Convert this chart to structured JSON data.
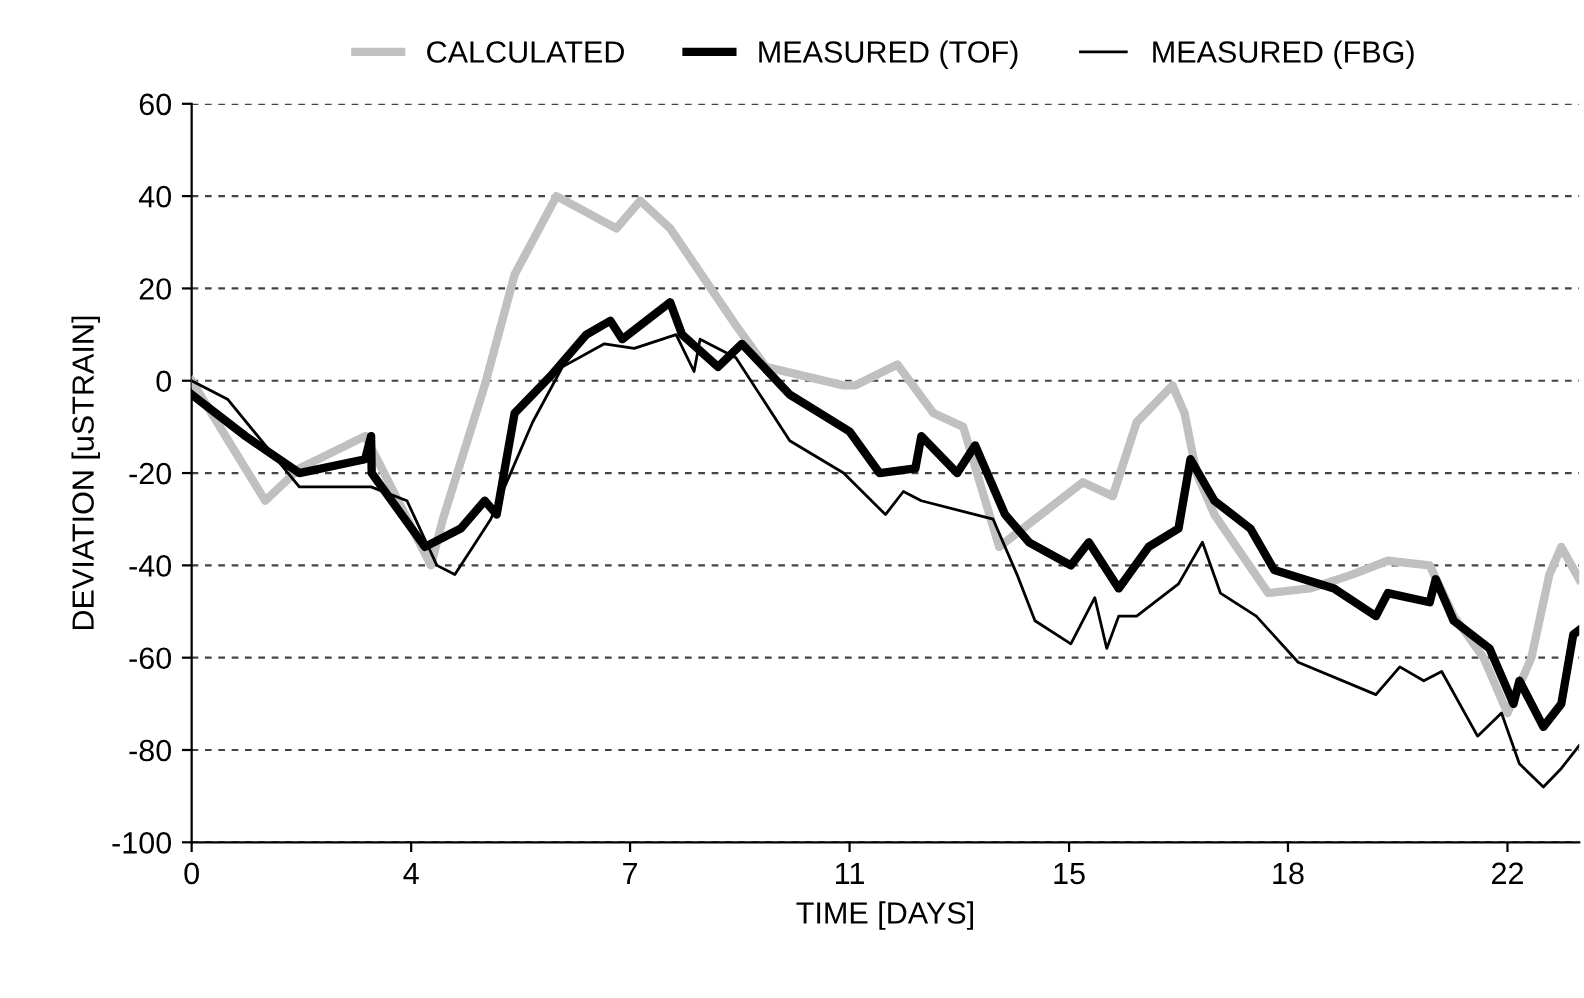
{
  "chart_data": {
    "type": "line",
    "xlabel": "TIME [DAYS]",
    "ylabel": "DEVIATION [uSTRAIN]",
    "xlim": [
      0,
      23.2
    ],
    "xticks": [
      0,
      {
        "value": 3.67,
        "label": "4"
      },
      {
        "value": 7.33,
        "label": "7"
      },
      11,
      {
        "value": 14.67,
        "label": "15"
      },
      {
        "value": 18.33,
        "label": "18"
      },
      22
    ],
    "ylim": [
      -100,
      60
    ],
    "yticks": [
      -100,
      -80,
      -60,
      -40,
      -20,
      0,
      20,
      40,
      60
    ],
    "grid": "y",
    "legend": "top",
    "marker": "none",
    "line_style": "solid",
    "series": [
      {
        "name": "CALCULATED",
        "color": "#c0c0c0",
        "x": [
          0,
          1.23,
          1.8,
          2.9,
          3.1,
          4.0,
          4.2,
          4.9,
          5.4,
          6.1,
          7.1,
          7.5,
          8.0,
          9.1,
          9.6,
          10.9,
          11.1,
          11.8,
          12.4,
          12.9,
          13.5,
          14.2,
          14.9,
          15.4,
          15.8,
          16.4,
          16.6,
          16.8,
          17.1,
          18.0,
          18.7,
          19.4,
          20.0,
          20.7,
          21.1,
          21.6,
          22.0,
          22.4,
          22.7,
          22.9,
          23.2
        ],
        "values": [
          0,
          -26,
          -19,
          -12,
          -17,
          -40,
          -30,
          -1,
          23,
          40,
          33,
          39,
          33,
          12,
          3,
          -1,
          -1,
          3.5,
          -7,
          -10,
          -36,
          -29,
          -22,
          -25,
          -9,
          -1,
          -7,
          -20,
          -29,
          -46,
          -45,
          -42,
          -39,
          -40,
          -51,
          -60,
          -72,
          -60,
          -42,
          -36,
          -43
        ]
      },
      {
        "name": "MEASURED (TOF)",
        "color": "#000000",
        "x": [
          0,
          0.9,
          1.8,
          2.9,
          3.0,
          3.01,
          3.9,
          4.5,
          4.9,
          5.1,
          5.4,
          6.0,
          6.6,
          7.0,
          7.2,
          7.6,
          8.0,
          8.2,
          8.8,
          9.2,
          10.0,
          10.5,
          11.0,
          11.5,
          12.1,
          12.2,
          12.8,
          13.1,
          13.6,
          14.0,
          14.7,
          15.0,
          15.5,
          16.0,
          16.5,
          16.7,
          17.1,
          17.7,
          18.1,
          19.1,
          19.8,
          20.0,
          20.7,
          20.8,
          21.1,
          21.7,
          22.1,
          22.2,
          22.6,
          22.9,
          23.1,
          23.2
        ],
        "values": [
          -3,
          -12,
          -20,
          -17,
          -12,
          -20,
          -36,
          -32,
          -26,
          -29,
          -7,
          1,
          10,
          13,
          9,
          13,
          17,
          10,
          3,
          8,
          -3,
          -7,
          -11,
          -20,
          -19,
          -12,
          -20,
          -14,
          -29,
          -35,
          -40,
          -35,
          -45,
          -36,
          -32,
          -17,
          -26,
          -32,
          -41,
          -45,
          -51,
          -46,
          -48,
          -43,
          -52,
          -58,
          -70,
          -65,
          -75,
          -70,
          -55,
          -54
        ]
      },
      {
        "name": "MEASURED (FBG)",
        "color": "#000000",
        "x": [
          0,
          0.6,
          1.8,
          3.0,
          3.6,
          4.1,
          4.4,
          4.7,
          5.0,
          5.7,
          6.2,
          6.9,
          7.4,
          8.1,
          8.4,
          8.5,
          9.1,
          10.0,
          10.9,
          11.6,
          11.9,
          12.2,
          13.4,
          13.8,
          14.1,
          14.7,
          15.1,
          15.3,
          15.5,
          15.8,
          16.5,
          16.9,
          17.2,
          17.8,
          18.5,
          19.8,
          20.2,
          20.6,
          20.9,
          21.5,
          21.9,
          22.2,
          22.6,
          22.9,
          23.2
        ],
        "values": [
          0,
          -4,
          -23,
          -23,
          -26,
          -40,
          -42,
          -36,
          -30,
          -9,
          3,
          8,
          7,
          10,
          2,
          9,
          5,
          -13,
          -20,
          -29,
          -24,
          -26,
          -30,
          -42,
          -52,
          -57,
          -47,
          -58,
          -51,
          -51,
          -44,
          -35,
          -46,
          -51,
          -61,
          -68,
          -62,
          -65,
          -63,
          -77,
          -72,
          -83,
          -88,
          -84,
          -79
        ]
      }
    ]
  }
}
